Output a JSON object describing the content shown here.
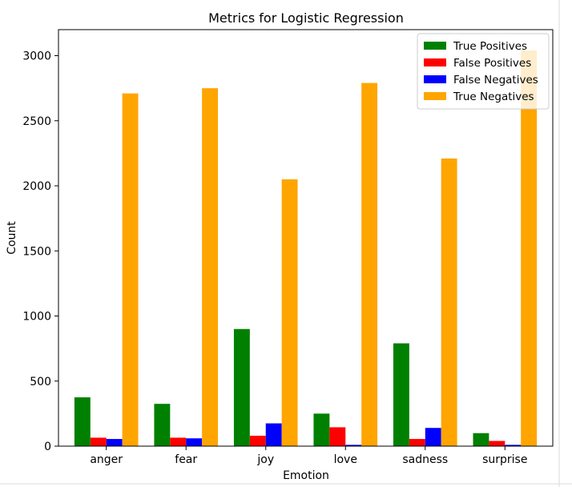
{
  "chart_data": {
    "type": "bar",
    "title": "Metrics for Logistic Regression",
    "xlabel": "Emotion",
    "ylabel": "Count",
    "categories": [
      "anger",
      "fear",
      "joy",
      "love",
      "sadness",
      "surprise"
    ],
    "series": [
      {
        "name": "True Positives",
        "color": "#008000",
        "values": [
          375,
          325,
          900,
          250,
          790,
          100
        ]
      },
      {
        "name": "False Positives",
        "color": "#ff0000",
        "values": [
          65,
          65,
          80,
          145,
          55,
          40
        ]
      },
      {
        "name": "False Negatives",
        "color": "#0000ff",
        "values": [
          55,
          60,
          175,
          10,
          140,
          10
        ]
      },
      {
        "name": "True Negatives",
        "color": "#ffa500",
        "values": [
          2710,
          2750,
          2050,
          2790,
          2210,
          3040
        ]
      }
    ],
    "ylim": [
      0,
      3200
    ],
    "yticks": [
      0,
      500,
      1000,
      1500,
      2000,
      2500,
      3000
    ],
    "grid": false,
    "legend_position": "top-right"
  }
}
